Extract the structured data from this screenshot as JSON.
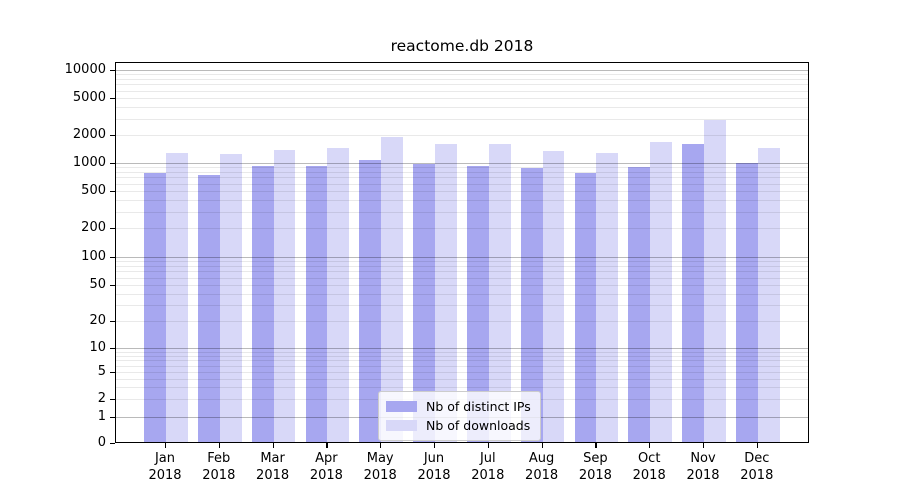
{
  "chart_data": {
    "type": "bar",
    "title": "reactome.db 2018",
    "x_axis": {
      "months": [
        "Jan",
        "Feb",
        "Mar",
        "Apr",
        "May",
        "Jun",
        "Jul",
        "Aug",
        "Sep",
        "Oct",
        "Nov",
        "Dec"
      ],
      "year": "2018"
    },
    "y_axis": {
      "scale": "symlog",
      "tick_values": [
        0,
        1,
        2,
        5,
        10,
        20,
        50,
        100,
        200,
        500,
        1000,
        2000,
        5000,
        10000
      ],
      "range": [
        0,
        12000
      ],
      "grid": "on"
    },
    "series": [
      {
        "name": "Nb of distinct IPs",
        "color": "#a7a7f0",
        "values": [
          810,
          755,
          950,
          950,
          1100,
          1000,
          945,
          910,
          805,
          930,
          1640,
          1020
        ]
      },
      {
        "name": "Nb of downloads",
        "color": "#d8d8f8",
        "values": [
          1310,
          1280,
          1420,
          1470,
          1950,
          1650,
          1640,
          1380,
          1310,
          1730,
          2950,
          1500
        ]
      }
    ],
    "legend": {
      "position": "bottom-center"
    },
    "colors": {
      "major_grid": "#bababa",
      "minor_grid": "#e9e9e9",
      "axis": "#000000",
      "background": "#ffffff"
    }
  }
}
